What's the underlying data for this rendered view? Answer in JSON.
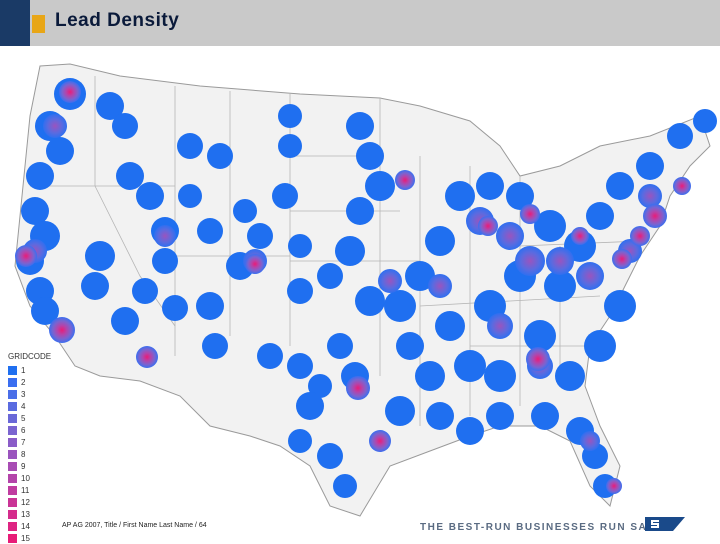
{
  "header": {
    "title": "Lead Density"
  },
  "legend": {
    "title": "GRIDCODE",
    "items": [
      {
        "label": "1",
        "color": "#1f6ff0"
      },
      {
        "label": "2",
        "color": "#3a6ef0"
      },
      {
        "label": "3",
        "color": "#4a6ee8"
      },
      {
        "label": "4",
        "color": "#5a6be0"
      },
      {
        "label": "5",
        "color": "#6a68d8"
      },
      {
        "label": "6",
        "color": "#7a64d0"
      },
      {
        "label": "7",
        "color": "#8a5cc8"
      },
      {
        "label": "8",
        "color": "#9a54be"
      },
      {
        "label": "9",
        "color": "#a84cb4"
      },
      {
        "label": "10",
        "color": "#b444aa"
      },
      {
        "label": "11",
        "color": "#c03ca0"
      },
      {
        "label": "12",
        "color": "#ca3496"
      },
      {
        "label": "13",
        "color": "#d42c8c"
      },
      {
        "label": "14",
        "color": "#de2482"
      },
      {
        "label": "15",
        "color": "#e81c78"
      }
    ]
  },
  "footer": {
    "left_text": "AP AG 2007, Title / First Name Last Name / 64",
    "right_text": "THE BEST-RUN BUSINESSES RUN SAP™"
  },
  "colors": {
    "low_density": "#1f6ff0",
    "mid_density": "#8a5cc8",
    "high_density": "#e81c78",
    "land": "#f2f2f2",
    "state_border": "#9a9a9a"
  }
}
